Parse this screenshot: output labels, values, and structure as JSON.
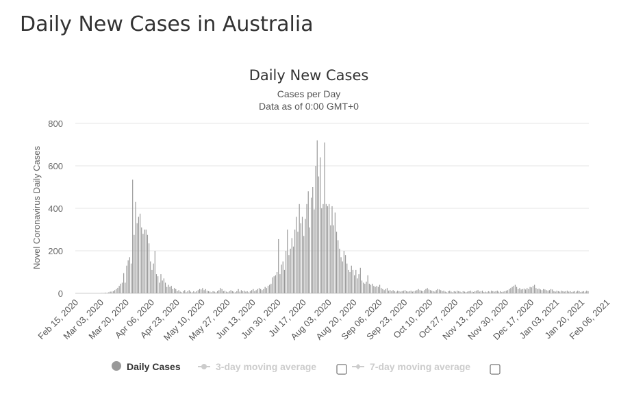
{
  "page": {
    "title": "Daily New Cases in Australia"
  },
  "chart_data": {
    "type": "bar",
    "title": "Daily New Cases",
    "subtitle_lines": [
      "Cases per Day",
      "Data as of 0:00 GMT+0"
    ],
    "ylabel": "Novel Coronavirus Daily Cases",
    "xlabel": "",
    "ylim": [
      0,
      800
    ],
    "yticks": [
      0,
      200,
      400,
      600,
      800
    ],
    "grid": true,
    "start_date": "2020-02-15",
    "end_date": "2021-02-13",
    "x_tick_labels": [
      "Feb 15, 2020",
      "Mar 03, 2020",
      "Mar 20, 2020",
      "Apr 06, 2020",
      "Apr 23, 2020",
      "May 10, 2020",
      "May 27, 2020",
      "Jun 13, 2020",
      "Jun 30, 2020",
      "Jul 17, 2020",
      "Aug 03, 2020",
      "Aug 20, 2020",
      "Sep 06, 2020",
      "Sep 23, 2020",
      "Oct 10, 2020",
      "Oct 27, 2020",
      "Nov 13, 2020",
      "Nov 30, 2020",
      "Dec 17, 2020",
      "Jan 03, 2021",
      "Jan 20, 2021",
      "Feb 06, 2021"
    ],
    "series": [
      {
        "name": "Daily Cases",
        "color": "#999999",
        "visible": true,
        "values": [
          0,
          0,
          0,
          0,
          0,
          0,
          0,
          0,
          0,
          0,
          0,
          0,
          0,
          0,
          0,
          0,
          0,
          1,
          1,
          1,
          3,
          2,
          5,
          8,
          8,
          10,
          15,
          20,
          26,
          35,
          45,
          50,
          95,
          50,
          130,
          155,
          170,
          140,
          535,
          275,
          430,
          330,
          360,
          375,
          310,
          280,
          300,
          300,
          275,
          235,
          150,
          110,
          140,
          200,
          90,
          80,
          50,
          90,
          60,
          70,
          50,
          30,
          40,
          30,
          35,
          20,
          25,
          20,
          10,
          15,
          8,
          5,
          10,
          15,
          5,
          10,
          15,
          8,
          5,
          10,
          5,
          10,
          15,
          20,
          18,
          25,
          15,
          20,
          12,
          10,
          8,
          5,
          10,
          8,
          5,
          10,
          15,
          25,
          20,
          10,
          12,
          8,
          5,
          10,
          15,
          10,
          8,
          5,
          10,
          20,
          8,
          15,
          10,
          12,
          8,
          10,
          5,
          10,
          15,
          20,
          10,
          15,
          20,
          25,
          20,
          15,
          20,
          30,
          25,
          35,
          40,
          45,
          75,
          80,
          85,
          100,
          255,
          90,
          135,
          150,
          110,
          200,
          300,
          180,
          210,
          260,
          220,
          300,
          360,
          290,
          420,
          330,
          360,
          270,
          350,
          420,
          480,
          310,
          450,
          500,
          395,
          600,
          720,
          550,
          640,
          400,
          420,
          710,
          420,
          410,
          420,
          320,
          410,
          320,
          380,
          290,
          250,
          210,
          170,
          150,
          200,
          180,
          140,
          110,
          100,
          130,
          110,
          85,
          110,
          70,
          90,
          120,
          60,
          50,
          45,
          55,
          85,
          45,
          40,
          45,
          35,
          30,
          35,
          30,
          40,
          25,
          20,
          15,
          20,
          25,
          12,
          15,
          10,
          15,
          10,
          8,
          12,
          10,
          8,
          10,
          12,
          15,
          10,
          8,
          10,
          12,
          8,
          10,
          12,
          15,
          20,
          15,
          12,
          10,
          15,
          20,
          25,
          18,
          15,
          12,
          10,
          8,
          15,
          20,
          18,
          15,
          10,
          12,
          8,
          5,
          10,
          12,
          8,
          5,
          10,
          8,
          12,
          10,
          8,
          5,
          10,
          8,
          6,
          8,
          10,
          12,
          8,
          6,
          10,
          12,
          15,
          8,
          10,
          12,
          6,
          8,
          5,
          10,
          8,
          12,
          10,
          8,
          10,
          12,
          8,
          10,
          6,
          8,
          10,
          12,
          15,
          20,
          25,
          30,
          35,
          40,
          30,
          20,
          25,
          18,
          20,
          22,
          18,
          25,
          20,
          30,
          28,
          35,
          40,
          25,
          20,
          22,
          18,
          15,
          20,
          18,
          15,
          12,
          15,
          20,
          18,
          10,
          8,
          12,
          10,
          8,
          12,
          10,
          8,
          10,
          12,
          8,
          10,
          6,
          8,
          10,
          8,
          12,
          10,
          6,
          8,
          10,
          8,
          12,
          10
        ]
      },
      {
        "name": "3-day moving average",
        "color": "#cccccc",
        "visible": false,
        "values": []
      },
      {
        "name": "7-day moving average",
        "color": "#cccccc",
        "visible": false,
        "values": []
      }
    ],
    "legend_position": "bottom-center"
  }
}
